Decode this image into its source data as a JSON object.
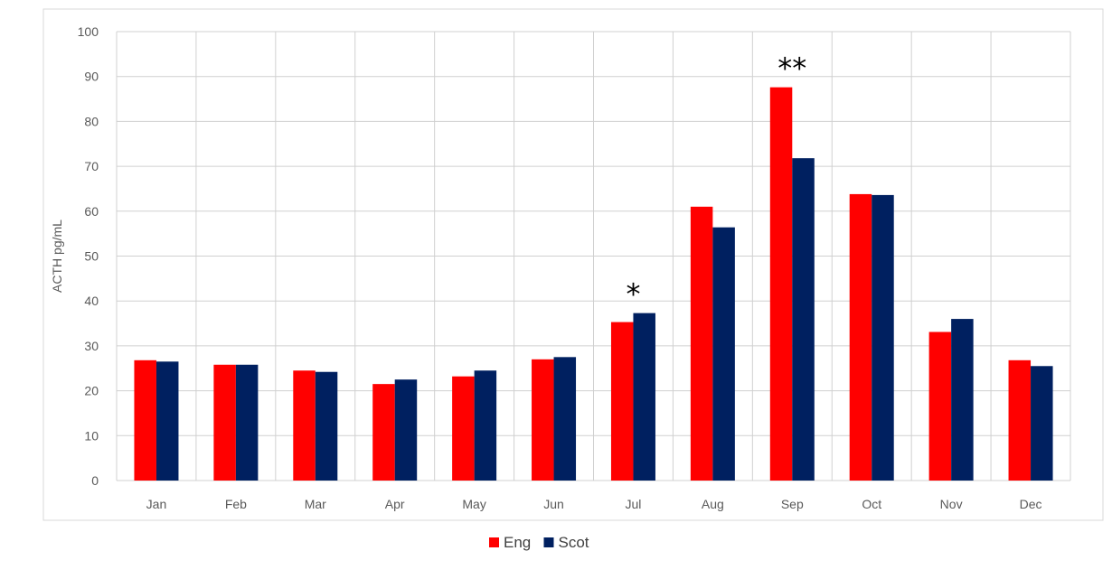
{
  "chart_data": {
    "type": "bar",
    "title": "",
    "xlabel": "",
    "ylabel": "ACTH pg/mL",
    "ylim": [
      0,
      100
    ],
    "yticks": [
      0,
      10,
      20,
      30,
      40,
      50,
      60,
      70,
      80,
      90,
      100
    ],
    "grid": true,
    "legend_position": "bottom",
    "categories": [
      "Jan",
      "Feb",
      "Mar",
      "Apr",
      "May",
      "Jun",
      "Jul",
      "Aug",
      "Sep",
      "Oct",
      "Nov",
      "Dec"
    ],
    "series": [
      {
        "name": "Eng",
        "color": "#ff0000",
        "values": [
          26.8,
          25.8,
          24.5,
          21.5,
          23.2,
          27.0,
          35.3,
          61.0,
          87.6,
          63.8,
          33.1,
          26.8
        ]
      },
      {
        "name": "Scot",
        "color": "#002060",
        "values": [
          26.5,
          25.8,
          24.2,
          22.5,
          24.5,
          27.5,
          37.3,
          56.4,
          71.8,
          63.6,
          36.0,
          25.5
        ]
      }
    ],
    "annotations": [
      {
        "category": "Jul",
        "text": "*"
      },
      {
        "category": "Sep",
        "text": "**"
      }
    ]
  }
}
